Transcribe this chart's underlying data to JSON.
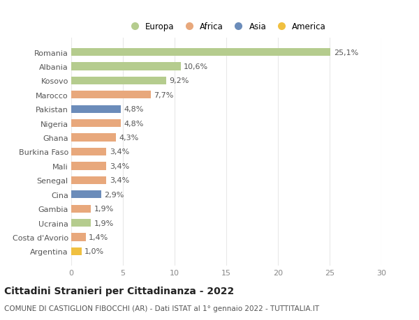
{
  "categories": [
    "Romania",
    "Albania",
    "Kosovo",
    "Marocco",
    "Pakistan",
    "Nigeria",
    "Ghana",
    "Burkina Faso",
    "Mali",
    "Senegal",
    "Cina",
    "Gambia",
    "Ucraina",
    "Costa d'Avorio",
    "Argentina"
  ],
  "values": [
    25.1,
    10.6,
    9.2,
    7.7,
    4.8,
    4.8,
    4.3,
    3.4,
    3.4,
    3.4,
    2.9,
    1.9,
    1.9,
    1.4,
    1.0
  ],
  "labels": [
    "25,1%",
    "10,6%",
    "9,2%",
    "7,7%",
    "4,8%",
    "4,8%",
    "4,3%",
    "3,4%",
    "3,4%",
    "3,4%",
    "2,9%",
    "1,9%",
    "1,9%",
    "1,4%",
    "1,0%"
  ],
  "colors": [
    "#b5cc8e",
    "#b5cc8e",
    "#b5cc8e",
    "#e8a87c",
    "#6b8cba",
    "#e8a87c",
    "#e8a87c",
    "#e8a87c",
    "#e8a87c",
    "#e8a87c",
    "#6b8cba",
    "#e8a87c",
    "#b5cc8e",
    "#e8a87c",
    "#f0c040"
  ],
  "legend_labels": [
    "Europa",
    "Africa",
    "Asia",
    "America"
  ],
  "legend_colors": [
    "#b5cc8e",
    "#e8a87c",
    "#6b8cba",
    "#f0c040"
  ],
  "xlim": [
    0,
    30
  ],
  "xticks": [
    0,
    5,
    10,
    15,
    20,
    25,
    30
  ],
  "title": "Cittadini Stranieri per Cittadinanza - 2022",
  "subtitle": "COMUNE DI CASTIGLION FIBOCCHI (AR) - Dati ISTAT al 1° gennaio 2022 - TUTTITALIA.IT",
  "title_fontsize": 10,
  "subtitle_fontsize": 7.5,
  "label_fontsize": 8,
  "tick_fontsize": 8,
  "background_color": "#ffffff",
  "grid_color": "#e8e8e8",
  "bar_height": 0.55
}
